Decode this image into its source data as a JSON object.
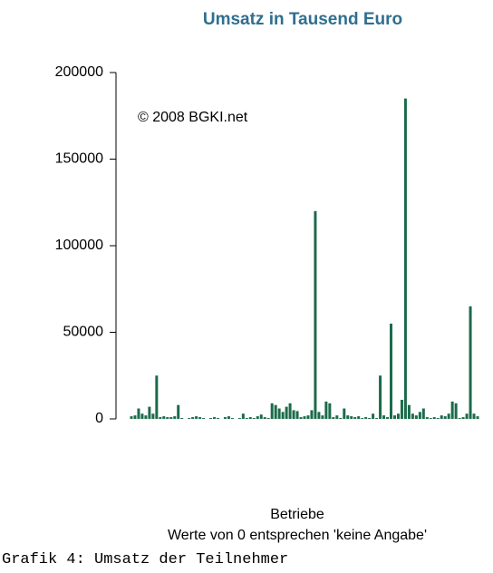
{
  "chart_data": {
    "type": "bar",
    "title": "Umsatz in Tausend Euro",
    "annotation": "© 2008 BGKI.net",
    "xlabel": "Betriebe",
    "subtitle": "Werte von 0 entsprechen 'keine Angabe'",
    "color": "#1b6b4b",
    "ylim": [
      0,
      200000
    ],
    "yticks": [
      0,
      50000,
      100000,
      150000,
      200000
    ],
    "values": [
      1500,
      2000,
      6000,
      3000,
      2000,
      7000,
      3000,
      25000,
      1000,
      1500,
      1000,
      1000,
      1500,
      8000,
      500,
      0,
      500,
      1000,
      1500,
      1000,
      500,
      0,
      500,
      1000,
      500,
      0,
      1000,
      1500,
      500,
      0,
      500,
      3000,
      500,
      1000,
      500,
      1500,
      2500,
      1000,
      500,
      9000,
      8000,
      6000,
      4000,
      7000,
      9000,
      5000,
      4500,
      1000,
      1500,
      2000,
      5000,
      120000,
      4000,
      2000,
      10000,
      9000,
      1000,
      2000,
      500,
      6000,
      2000,
      1500,
      1000,
      1500,
      500,
      1000,
      500,
      3000,
      500,
      25000,
      2000,
      1000,
      55000,
      2000,
      3000,
      11000,
      185000,
      8000,
      3000,
      2000,
      4000,
      6000,
      1000,
      500,
      1000,
      500,
      2000,
      1500,
      3000,
      10000,
      9000,
      500,
      1000,
      3000,
      65000,
      3000,
      1500
    ]
  },
  "caption": "Grafik 4: Umsatz der Teilnehmer"
}
